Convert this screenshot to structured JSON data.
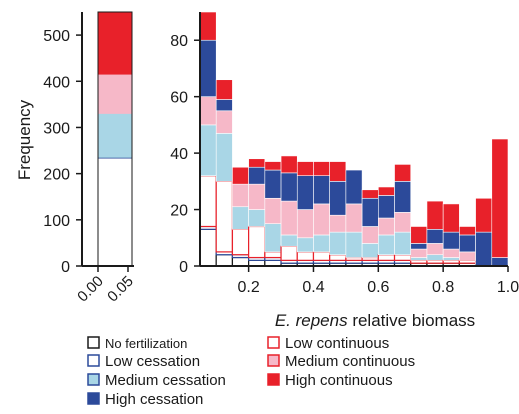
{
  "colors": {
    "no_fertilization": "#ffffff",
    "low_cessation": "#2c4a9a",
    "medium_cessation": "#a9d6e6",
    "high_cessation": "#2c4a9a",
    "low_continuous": "#e8212a",
    "medium_continuous": "#f6b8c8",
    "high_continuous": "#e8212a",
    "outline_black": "#1a1a1a"
  },
  "chart_data": [
    {
      "type": "bar",
      "subtype": "stacked",
      "xlabel": "",
      "ylabel": "Frequency",
      "xticks": [
        "0.00",
        "0.05"
      ],
      "ylim": [
        0,
        550
      ],
      "yticks": [
        0,
        100,
        200,
        300,
        400,
        500
      ],
      "categories": [
        "total"
      ],
      "series": [
        {
          "key": "no_fertilization",
          "values": [
            85
          ]
        },
        {
          "key": "low_cessation",
          "values": [
            150
          ]
        },
        {
          "key": "medium_cessation",
          "values": [
            95
          ]
        },
        {
          "key": "high_cessation",
          "values": [
            0
          ]
        },
        {
          "key": "low_continuous",
          "values": [
            0
          ]
        },
        {
          "key": "medium_continuous",
          "values": [
            85
          ]
        },
        {
          "key": "high_continuous",
          "values": [
            135
          ]
        }
      ]
    },
    {
      "type": "bar",
      "subtype": "stacked",
      "xlabel_italic": "E. repens",
      "xlabel_rest": " relative biomass",
      "ylabel": "",
      "xlim": [
        0.05,
        1.0
      ],
      "ylim": [
        0,
        90
      ],
      "xticks": [
        "0.2",
        "0.4",
        "0.6",
        "0.8",
        "1.0"
      ],
      "yticks": [
        0,
        20,
        40,
        60,
        80
      ],
      "x": [
        0.075,
        0.125,
        0.175,
        0.225,
        0.275,
        0.325,
        0.375,
        0.425,
        0.475,
        0.525,
        0.575,
        0.625,
        0.675,
        0.725,
        0.775,
        0.825,
        0.875,
        0.925,
        0.975
      ],
      "series": [
        {
          "key": "no_fertilization",
          "values": [
            13,
            4,
            3,
            2,
            2,
            1,
            1,
            1,
            1,
            1,
            1,
            1,
            1,
            1,
            1,
            1,
            1,
            0,
            0
          ]
        },
        {
          "key": "low_cessation",
          "values": [
            1,
            1,
            1,
            1,
            1,
            1,
            1,
            1,
            1,
            1,
            1,
            1,
            1,
            0,
            0,
            0,
            0,
            0,
            0
          ]
        },
        {
          "key": "low_continuous",
          "values": [
            18,
            25,
            9,
            11,
            2,
            5,
            3,
            3,
            2,
            1,
            1,
            2,
            2,
            1,
            1,
            1,
            1,
            0,
            0
          ]
        },
        {
          "key": "medium_cessation",
          "values": [
            18,
            17,
            8,
            6,
            10,
            4,
            5,
            6,
            8,
            9,
            5,
            7,
            8,
            1,
            2,
            1,
            0,
            0,
            0
          ]
        },
        {
          "key": "medium_continuous",
          "values": [
            10,
            8,
            8,
            9,
            9,
            12,
            10,
            11,
            6,
            10,
            6,
            6,
            7,
            3,
            4,
            3,
            3,
            0,
            0
          ]
        },
        {
          "key": "high_cessation",
          "values": [
            20,
            4,
            0,
            6,
            10,
            10,
            12,
            10,
            12,
            12,
            10,
            8,
            11,
            2,
            5,
            6,
            6,
            12,
            3
          ]
        },
        {
          "key": "high_continuous",
          "values": [
            10,
            7,
            6,
            3,
            3,
            6,
            5,
            5,
            7,
            0,
            3,
            3,
            6,
            6,
            10,
            10,
            3,
            12,
            42
          ]
        }
      ]
    }
  ],
  "legend": {
    "items": [
      {
        "key": "no_fertilization",
        "label": "No fertilization"
      },
      {
        "key": "low_cessation",
        "label": "Low cessation"
      },
      {
        "key": "medium_cessation",
        "label": "Medium cessation"
      },
      {
        "key": "high_cessation",
        "label": "High cessation"
      },
      {
        "key": "low_continuous",
        "label": "Low continuous"
      },
      {
        "key": "medium_continuous",
        "label": "Medium continuous"
      },
      {
        "key": "high_continuous",
        "label": "High continuous"
      }
    ]
  }
}
